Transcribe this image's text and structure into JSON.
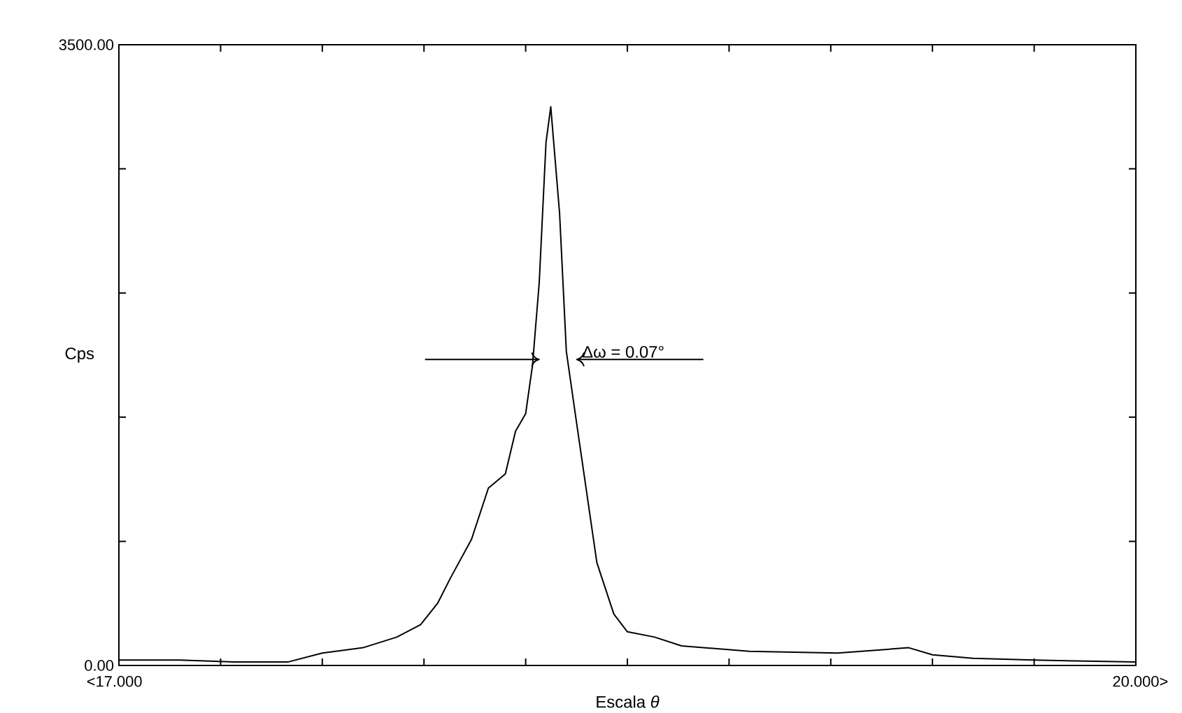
{
  "chart_data": {
    "type": "line",
    "xlabel": "Escala *θ*",
    "ylabel": "Cps",
    "xlim": [
      17,
      20
    ],
    "ylim": [
      0,
      3500
    ],
    "xticks": [
      {
        "value": 17,
        "label": "17.000"
      },
      {
        "value": 17.3,
        "label": null
      },
      {
        "value": 17.6,
        "label": null
      },
      {
        "value": 17.9,
        "label": null
      },
      {
        "value": 18.2,
        "label": null
      },
      {
        "value": 18.5,
        "label": null
      },
      {
        "value": 18.8,
        "label": null
      },
      {
        "value": 19.1,
        "label": null
      },
      {
        "value": 19.4,
        "label": null
      },
      {
        "value": 19.7,
        "label": null
      },
      {
        "value": 20,
        "label": "20.000"
      }
    ],
    "yticks": [
      {
        "value": 0,
        "label": "0.00"
      },
      {
        "value": 700,
        "label": null
      },
      {
        "value": 1400,
        "label": null
      },
      {
        "value": 2100,
        "label": null
      },
      {
        "value": 2800,
        "label": null
      },
      {
        "value": 3500,
        "label": "3500.00"
      }
    ],
    "x": [
      17.0,
      17.18,
      17.34,
      17.5,
      17.6,
      17.72,
      17.82,
      17.89,
      17.94,
      17.98,
      18.04,
      18.09,
      18.14,
      18.17,
      18.2,
      18.22,
      18.24,
      18.26,
      18.274,
      18.3,
      18.32,
      18.35,
      18.41,
      18.46,
      18.5,
      18.58,
      18.66,
      18.86,
      19.12,
      19.33,
      19.4,
      19.52,
      19.7,
      20.0
    ],
    "series": [
      {
        "color": "#000000",
        "values": [
          30,
          30,
          20,
          20,
          70,
          100,
          160,
          230,
          350,
          500,
          710,
          1000,
          1080,
          1320,
          1420,
          1690,
          2160,
          2950,
          3150,
          2550,
          1770,
          1370,
          580,
          290,
          190,
          160,
          110,
          80,
          70,
          100,
          60,
          40,
          30,
          20
        ]
      }
    ],
    "annotations": [
      "Δω = 0.07°",
      "<",
      ">"
    ],
    "marker": "none",
    "line_style": "solid"
  }
}
